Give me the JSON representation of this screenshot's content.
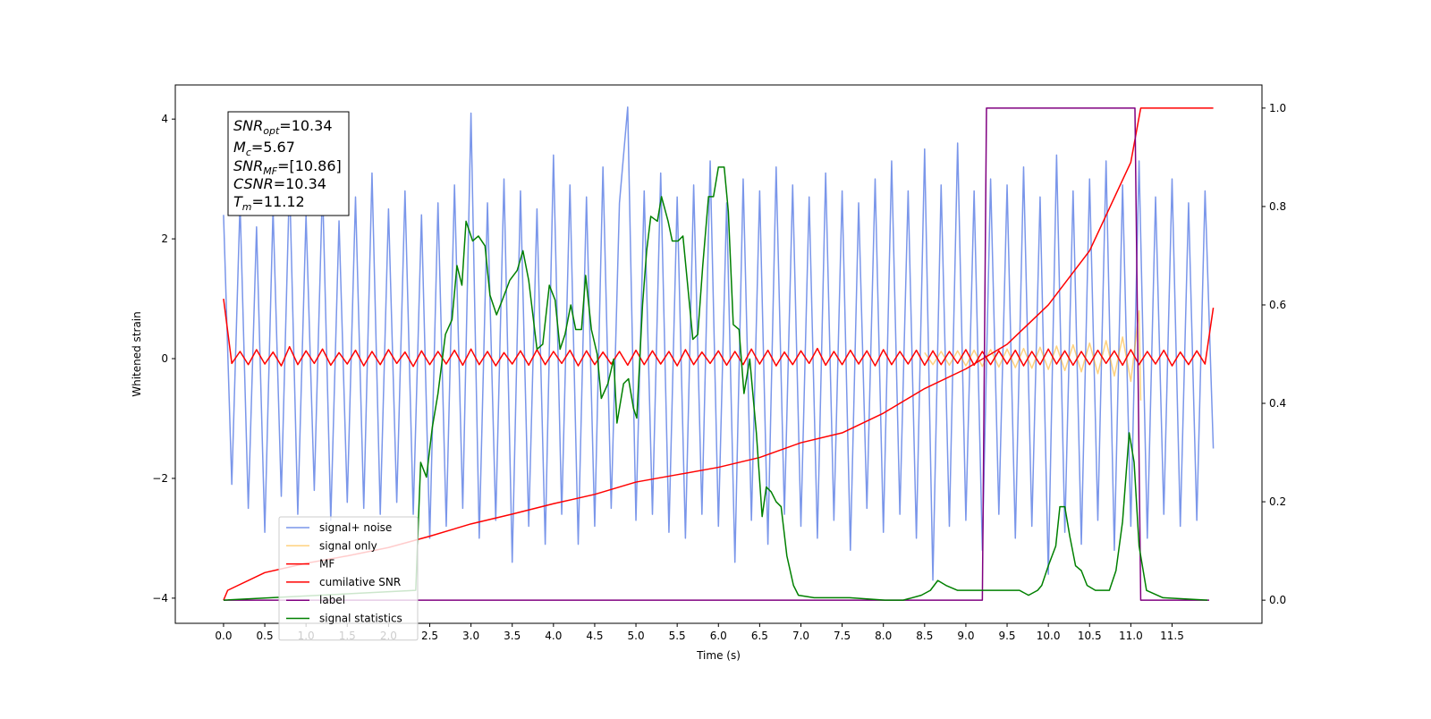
{
  "chart_data": {
    "type": "line",
    "xlabel": "Time (s)",
    "ylabel": "Whitened strain",
    "xlim": [
      -0.585,
      12.59
    ],
    "ylim": [
      -4.42,
      4.57
    ],
    "y2lim": [
      -0.047,
      1.047
    ],
    "xticks": [
      {
        "value": 0,
        "label": "0.0"
      },
      0.5,
      {
        "value": 1,
        "label": "1.0"
      },
      1.5,
      {
        "value": 2,
        "label": "2.0"
      },
      2.5,
      {
        "value": 3,
        "label": "3.0"
      },
      3.5,
      {
        "value": 4,
        "label": "4.0"
      },
      4.5,
      {
        "value": 5,
        "label": "5.0"
      },
      5.5,
      {
        "value": 6,
        "label": "6.0"
      },
      6.5,
      {
        "value": 7,
        "label": "7.0"
      },
      7.5,
      {
        "value": 8,
        "label": "8.0"
      },
      8.5,
      {
        "value": 9,
        "label": "9.0"
      },
      9.5,
      {
        "value": 10,
        "label": "10.0"
      },
      10.5,
      {
        "value": 11,
        "label": "11.0"
      },
      11.5
    ],
    "yticks": [
      {
        "value": -4,
        "label": "−4"
      },
      {
        "value": -2,
        "label": "−2"
      },
      0,
      2,
      4
    ],
    "y2ticks": [
      {
        "value": 0,
        "label": "0.0"
      },
      0.2,
      0.4,
      0.6,
      0.8,
      {
        "value": 1,
        "label": "1.0"
      }
    ],
    "legend": "lower left",
    "annotations": [
      {
        "symbol": "SNR",
        "subscript": "opt",
        "text": "=10.34"
      },
      {
        "symbol": "M",
        "subscript": "c",
        "text": "=5.67"
      },
      {
        "symbol": "SNR",
        "subscript": "MF",
        "text": "=[10.86]"
      },
      {
        "symbol": "CSNR",
        "text": "=10.34"
      },
      {
        "symbol": "T",
        "subscript": "m",
        "text": "=11.12"
      }
    ],
    "x": [
      0,
      0.1,
      0.2,
      0.3,
      0.4,
      0.5,
      0.6,
      0.7,
      0.8,
      0.9,
      1,
      1.1,
      1.2,
      1.3,
      1.4,
      1.5,
      1.6,
      1.7,
      1.8,
      1.9,
      2,
      2.1,
      2.2,
      2.3,
      2.4,
      2.5,
      2.6,
      2.7,
      2.8,
      2.9,
      3,
      3.1,
      3.2,
      3.3,
      3.4,
      3.5,
      3.6,
      3.7,
      3.8,
      3.9,
      4,
      4.1,
      4.2,
      4.3,
      4.4,
      4.5,
      4.6,
      4.7,
      4.8,
      4.9,
      5,
      5.1,
      5.2,
      5.3,
      5.4,
      5.5,
      5.6,
      5.7,
      5.8,
      5.9,
      6,
      6.1,
      6.2,
      6.3,
      6.4,
      6.5,
      6.6,
      6.7,
      6.8,
      6.9,
      7,
      7.1,
      7.2,
      7.3,
      7.4,
      7.5,
      7.6,
      7.7,
      7.8,
      7.9,
      8,
      8.1,
      8.2,
      8.3,
      8.4,
      8.5,
      8.6,
      8.7,
      8.8,
      8.9,
      9,
      9.1,
      9.2,
      9.3,
      9.4,
      9.5,
      9.6,
      9.7,
      9.8,
      9.9,
      10,
      10.1,
      10.2,
      10.3,
      10.4,
      10.5,
      10.6,
      10.7,
      10.8,
      10.9,
      11,
      11.1,
      11.2,
      11.3,
      11.4,
      11.5,
      11.6,
      11.7,
      11.8,
      11.9,
      12
    ],
    "series": [
      {
        "name": "signal+ noise",
        "color": "#4169e1",
        "values": [
          2.4,
          -2.1,
          2.6,
          -2.5,
          2.2,
          -2.9,
          2.5,
          -2.3,
          3.0,
          -2.6,
          2.4,
          -2.2,
          2.9,
          -2.7,
          2.3,
          -2.4,
          2.7,
          -2.5,
          3.1,
          -2.6,
          2.5,
          -2.4,
          2.8,
          -2.6,
          2.4,
          -3.0,
          2.6,
          -2.8,
          2.9,
          -2.5,
          4.1,
          -3.0,
          2.6,
          -2.7,
          3.0,
          -3.4,
          2.8,
          -2.8,
          2.5,
          -3.1,
          3.4,
          -2.6,
          2.9,
          -3.1,
          2.7,
          -2.8,
          3.2,
          -2.5,
          2.6,
          4.2,
          -2.7,
          2.8,
          -2.6,
          3.1,
          -2.9,
          2.7,
          -3.0,
          2.9,
          -2.6,
          3.3,
          -2.8,
          2.6,
          -3.4,
          3.0,
          -2.7,
          2.8,
          -3.1,
          3.2,
          -2.6,
          2.9,
          -2.8,
          2.7,
          -3.0,
          3.1,
          -2.7,
          2.8,
          -3.2,
          2.6,
          -2.5,
          3.0,
          -2.9,
          3.3,
          -2.6,
          2.8,
          -3.0,
          3.5,
          -3.7,
          2.9,
          -2.8,
          3.6,
          -2.7,
          2.8,
          -3.2,
          3.0,
          -2.6,
          2.9,
          -3.0,
          3.2,
          -2.8,
          2.7,
          -3.6,
          3.4,
          -2.9,
          2.8,
          -3.1,
          3.0,
          -2.7,
          3.3,
          -3.2,
          2.9,
          -2.8,
          3.3,
          -3.0,
          2.7,
          -2.6,
          3.0,
          -2.8,
          2.6,
          -2.7,
          2.8,
          -1.5
        ]
      },
      {
        "name": "signal only",
        "color": "#ffa500",
        "x": [
          8.5,
          8.6,
          8.7,
          8.8,
          8.9,
          9.0,
          9.1,
          9.2,
          9.3,
          9.4,
          9.5,
          9.6,
          9.7,
          9.8,
          9.9,
          10.0,
          10.1,
          10.2,
          10.3,
          10.4,
          10.5,
          10.6,
          10.7,
          10.8,
          10.9,
          11.0,
          11.1,
          11.12
        ],
        "values": [
          0.1,
          -0.1,
          0.12,
          -0.11,
          0.13,
          -0.12,
          0.14,
          -0.13,
          0.15,
          -0.14,
          0.16,
          -0.15,
          0.17,
          -0.16,
          0.19,
          -0.18,
          0.21,
          -0.2,
          0.23,
          -0.22,
          0.26,
          -0.25,
          0.3,
          -0.29,
          0.36,
          -0.38,
          0.8,
          -0.7
        ]
      },
      {
        "name": "MF",
        "color": "#ff0000",
        "values": [
          1.0,
          -0.08,
          0.12,
          -0.1,
          0.15,
          -0.09,
          0.11,
          -0.12,
          0.2,
          -0.1,
          0.13,
          -0.08,
          0.16,
          -0.11,
          0.1,
          -0.09,
          0.14,
          -0.12,
          0.12,
          -0.1,
          0.15,
          -0.08,
          0.11,
          -0.13,
          0.13,
          -0.1,
          0.12,
          -0.09,
          0.14,
          -0.11,
          0.16,
          -0.1,
          0.12,
          -0.12,
          0.1,
          -0.09,
          0.13,
          -0.11,
          0.15,
          -0.1,
          0.12,
          -0.08,
          0.14,
          -0.12,
          0.13,
          -0.1,
          0.11,
          -0.09,
          0.12,
          -0.11,
          0.14,
          -0.1,
          0.13,
          -0.09,
          0.12,
          -0.12,
          0.15,
          -0.1,
          0.11,
          -0.08,
          0.13,
          -0.11,
          0.12,
          -0.1,
          0.16,
          -0.09,
          0.14,
          -0.12,
          0.11,
          -0.1,
          0.13,
          -0.08,
          0.17,
          -0.11,
          0.12,
          -0.1,
          0.14,
          -0.09,
          0.13,
          -0.12,
          0.15,
          -0.1,
          0.12,
          -0.09,
          0.14,
          -0.11,
          0.13,
          -0.1,
          0.12,
          -0.08,
          0.15,
          -0.11,
          0.12,
          -0.1,
          0.13,
          -0.09,
          0.14,
          -0.12,
          0.12,
          -0.1,
          0.16,
          -0.09,
          0.13,
          -0.11,
          0.12,
          -0.1,
          0.14,
          -0.08,
          0.13,
          -0.11,
          0.15,
          -0.1,
          0.12,
          -0.09,
          0.14,
          -0.12,
          0.11,
          -0.1,
          0.13,
          -0.09,
          0.85
        ]
      },
      {
        "name": "cumilative SNR",
        "color": "#ff0000",
        "axis": "y2",
        "x": [
          0,
          0.05,
          0.5,
          1,
          1.5,
          2,
          2.5,
          3,
          3.5,
          4,
          4.5,
          5,
          5.5,
          6,
          6.5,
          7,
          7.5,
          8,
          8.5,
          9,
          9.5,
          10,
          10.5,
          11,
          11.12,
          12
        ],
        "values": [
          0,
          0.02,
          0.056,
          0.075,
          0.09,
          0.107,
          0.13,
          0.155,
          0.175,
          0.196,
          0.215,
          0.24,
          0.255,
          0.27,
          0.29,
          0.32,
          0.34,
          0.38,
          0.43,
          0.47,
          0.52,
          0.6,
          0.71,
          0.89,
          1.0,
          1.0
        ]
      },
      {
        "name": "label",
        "color": "#800080",
        "axis": "y2",
        "x": [
          0,
          9.2,
          9.25,
          11.05,
          11.12,
          11.95
        ],
        "values": [
          0,
          0,
          1,
          1,
          0,
          0
        ]
      },
      {
        "name": "signal statistics",
        "color": "#008000",
        "axis": "y2",
        "x": [
          0,
          2.33,
          2.39,
          2.46,
          2.53,
          2.6,
          2.69,
          2.77,
          2.83,
          2.89,
          2.94,
          3.02,
          3.09,
          3.17,
          3.23,
          3.31,
          3.38,
          3.47,
          3.56,
          3.63,
          3.7,
          3.8,
          3.87,
          3.95,
          4.02,
          4.08,
          4.14,
          4.21,
          4.27,
          4.34,
          4.39,
          4.46,
          4.53,
          4.58,
          4.66,
          4.73,
          4.77,
          4.85,
          4.91,
          4.97,
          5.01,
          5.08,
          5.13,
          5.18,
          5.26,
          5.31,
          5.39,
          5.44,
          5.51,
          5.57,
          5.69,
          5.75,
          5.81,
          5.88,
          5.94,
          6.0,
          6.07,
          6.12,
          6.18,
          6.25,
          6.31,
          6.38,
          6.46,
          6.53,
          6.58,
          6.64,
          6.7,
          6.76,
          6.83,
          6.91,
          6.97,
          7.16,
          7.59,
          8.02,
          8.24,
          8.46,
          8.57,
          8.66,
          8.76,
          8.9,
          9.06,
          9.22,
          9.43,
          9.65,
          9.76,
          9.87,
          9.92,
          10.0,
          10.09,
          10.14,
          10.2,
          10.26,
          10.33,
          10.4,
          10.47,
          10.57,
          10.74,
          10.82,
          10.9,
          10.98,
          11.04,
          11.1,
          11.19,
          11.39,
          11.93
        ],
        "values": [
          0,
          0.02,
          0.28,
          0.25,
          0.35,
          0.42,
          0.54,
          0.57,
          0.68,
          0.64,
          0.77,
          0.73,
          0.74,
          0.72,
          0.62,
          0.58,
          0.61,
          0.65,
          0.67,
          0.71,
          0.65,
          0.51,
          0.52,
          0.64,
          0.61,
          0.51,
          0.54,
          0.6,
          0.55,
          0.55,
          0.66,
          0.55,
          0.5,
          0.41,
          0.44,
          0.49,
          0.36,
          0.44,
          0.45,
          0.39,
          0.37,
          0.6,
          0.71,
          0.78,
          0.77,
          0.82,
          0.77,
          0.73,
          0.73,
          0.74,
          0.53,
          0.54,
          0.68,
          0.82,
          0.82,
          0.88,
          0.88,
          0.79,
          0.56,
          0.55,
          0.42,
          0.49,
          0.34,
          0.17,
          0.23,
          0.22,
          0.2,
          0.19,
          0.09,
          0.03,
          0.01,
          0.005,
          0.005,
          0,
          0,
          0.01,
          0.02,
          0.04,
          0.03,
          0.02,
          0.02,
          0.02,
          0.02,
          0.02,
          0.01,
          0.02,
          0.03,
          0.07,
          0.11,
          0.19,
          0.19,
          0.13,
          0.07,
          0.06,
          0.03,
          0.02,
          0.02,
          0.06,
          0.16,
          0.34,
          0.28,
          0.11,
          0.02,
          0.005,
          0
        ]
      }
    ]
  }
}
